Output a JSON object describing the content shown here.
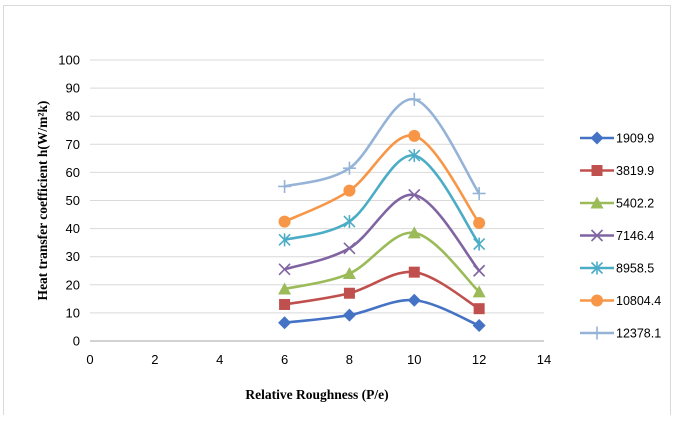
{
  "chart_data": {
    "type": "scatter",
    "xlabel": "Relative Roughness (P/e)",
    "ylabel": "Heat transfer  coefficient h(W/m²k)",
    "xlim": [
      0,
      14
    ],
    "ylim": [
      0,
      100
    ],
    "xticks": [
      "0",
      "2",
      "4",
      "6",
      "8",
      "10",
      "12",
      "14"
    ],
    "yticks": [
      "0",
      "10",
      "20",
      "30",
      "40",
      "50",
      "60",
      "70",
      "80",
      "90",
      "100"
    ],
    "grid": "horizontal",
    "legend_position": "right",
    "smooth_lines": true,
    "x": [
      6,
      8,
      10,
      12
    ],
    "series": [
      {
        "name": "1909.9",
        "values": [
          6.5,
          9.2,
          14.5,
          5.5
        ],
        "color": "#4472c4",
        "marker": "diamond"
      },
      {
        "name": "3819.9",
        "values": [
          13,
          17,
          24.5,
          11.5
        ],
        "color": "#c0504d",
        "marker": "square"
      },
      {
        "name": "5402.2",
        "values": [
          18.5,
          24,
          38.5,
          17.5
        ],
        "color": "#9bbb59",
        "marker": "triangle"
      },
      {
        "name": "7146.4",
        "values": [
          25.5,
          33,
          52,
          25
        ],
        "color": "#8064a2",
        "marker": "x"
      },
      {
        "name": "8958.5",
        "values": [
          36,
          42.5,
          66,
          34.5
        ],
        "color": "#4bacc6",
        "marker": "star"
      },
      {
        "name": "10804.4",
        "values": [
          42.5,
          53.5,
          73,
          42
        ],
        "color": "#f79646",
        "marker": "circle"
      },
      {
        "name": "12378.1",
        "values": [
          55,
          61.5,
          86,
          52.5
        ],
        "color": "#95b3d7",
        "marker": "plus"
      }
    ]
  }
}
